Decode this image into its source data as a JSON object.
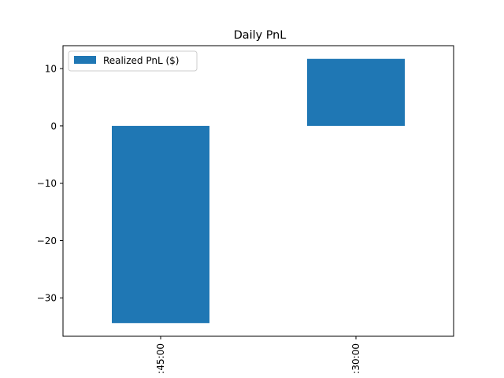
{
  "chart_data": {
    "type": "bar",
    "title": "Daily PnL",
    "xlabel": "",
    "ylabel": "",
    "categories": [
      ":45:00",
      ":30:00"
    ],
    "series": [
      {
        "name": "Realized PnL ($)",
        "values": [
          -34.4,
          11.7
        ]
      }
    ],
    "ylim": [
      -36.7,
      14.0
    ],
    "yticks": [
      10,
      0,
      -10,
      -20,
      -30
    ],
    "ytick_labels": [
      "10",
      "0",
      "−10",
      "−20",
      "−30"
    ],
    "legend": "top-left",
    "grid": false,
    "colors": {
      "bar": "#1f77b4"
    }
  }
}
